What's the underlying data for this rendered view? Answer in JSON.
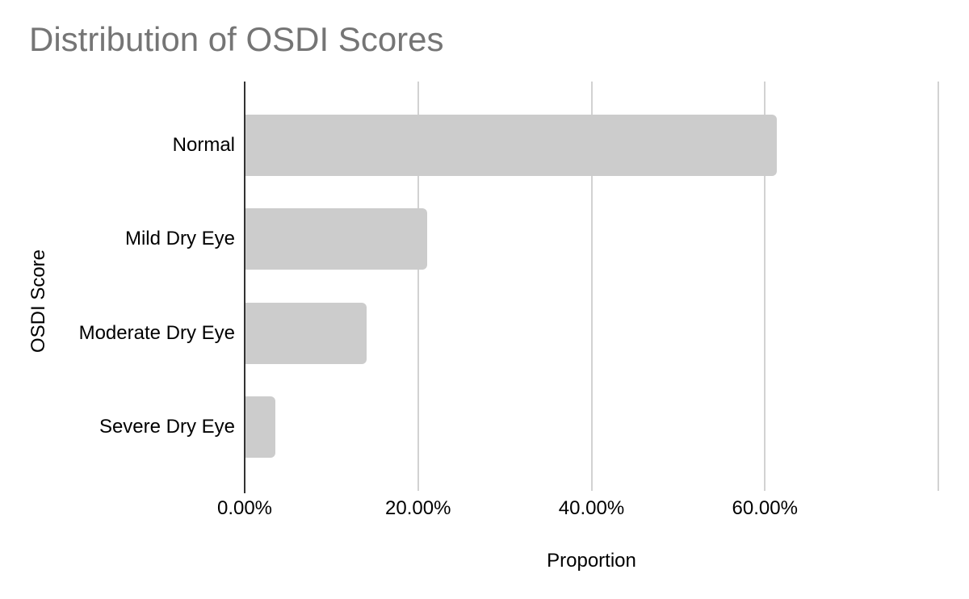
{
  "colors": {
    "background": "#ffffff",
    "title_color": "#757575",
    "bar_color": "#cccccc",
    "gridline_color": "#d2d2d2",
    "axis_color": "#333333",
    "label_color": "#000000"
  },
  "chart_data": {
    "type": "bar",
    "orientation": "horizontal",
    "title": "Distribution of OSDI Scores",
    "xlabel": "Proportion",
    "ylabel": "OSDI Score",
    "categories": [
      "Normal",
      "Mild Dry Eye",
      "Moderate Dry Eye",
      "Severe Dry Eye"
    ],
    "values": [
      61.4,
      21.05,
      14.04,
      3.51
    ],
    "value_unit": "percent",
    "xlim": [
      0,
      80
    ],
    "gridline_values": [
      0,
      20,
      40,
      60,
      80
    ],
    "x_ticks": [
      {
        "value": 0,
        "label": "0.00%"
      },
      {
        "value": 20,
        "label": "20.00%"
      },
      {
        "value": 40,
        "label": "40.00%"
      },
      {
        "value": 60,
        "label": "60.00%"
      }
    ],
    "grid": true,
    "legend": false
  }
}
